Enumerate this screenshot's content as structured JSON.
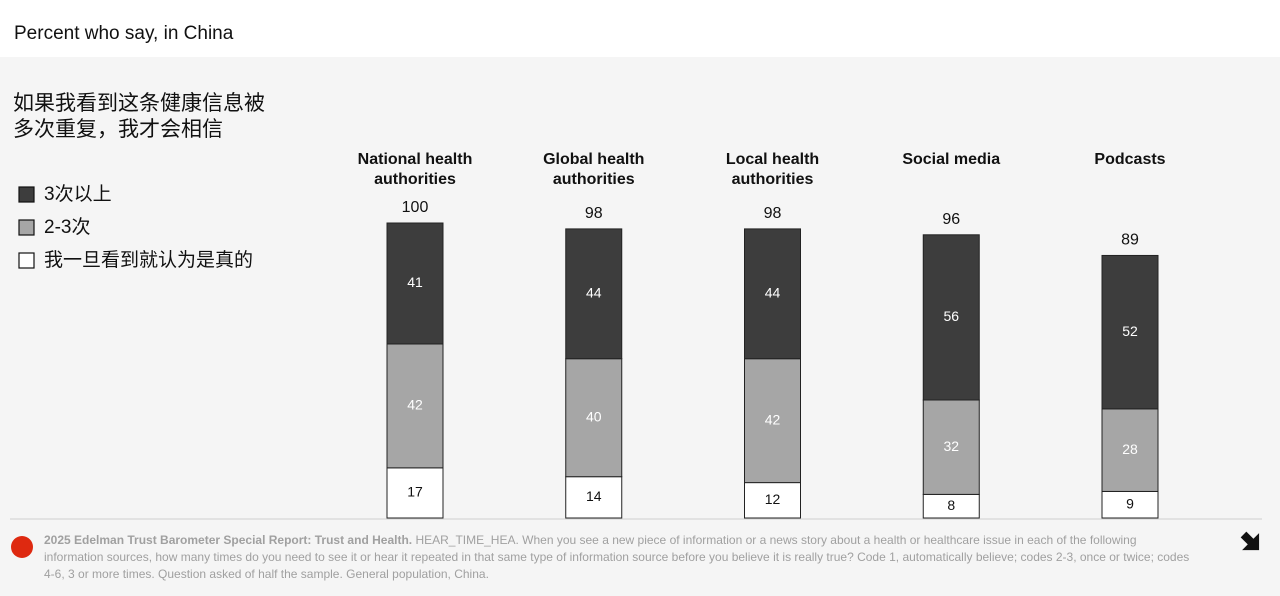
{
  "header": {
    "title": "Percent who say, in China"
  },
  "chart_data": {
    "type": "stacked_bar",
    "title": "如果我看到这条健康信息被多次重复，我才会相信",
    "categories": [
      "National health authorities",
      "Global health authorities",
      "Local health authorities",
      "Social media",
      "Podcasts"
    ],
    "series": [
      {
        "name": "3次以上",
        "color": "#3d3d3d",
        "values": [
          41,
          44,
          44,
          56,
          52
        ]
      },
      {
        "name": "2-3次",
        "color": "#a6a6a6",
        "values": [
          42,
          40,
          42,
          32,
          28
        ]
      },
      {
        "name": "我一旦看到就认为是真的",
        "color": "#ffffff",
        "values": [
          17,
          14,
          12,
          8,
          9
        ]
      }
    ],
    "totals": [
      100,
      98,
      98,
      96,
      89
    ]
  },
  "footer": {
    "source": "2025 Edelman Trust Barometer Special Report: Trust and Health.",
    "note": "HEAR_TIME_HEA. When you see a new piece of information or a news story about a health or healthcare issue in each of the following information sources, how many times do you need to see it or hear it repeated in that same type of information source before you believe it is really true? Code 1, automatically believe; codes 2-3, once or twice; codes 4-6, 3 or more times. Question asked of half the sample. General population, China."
  }
}
